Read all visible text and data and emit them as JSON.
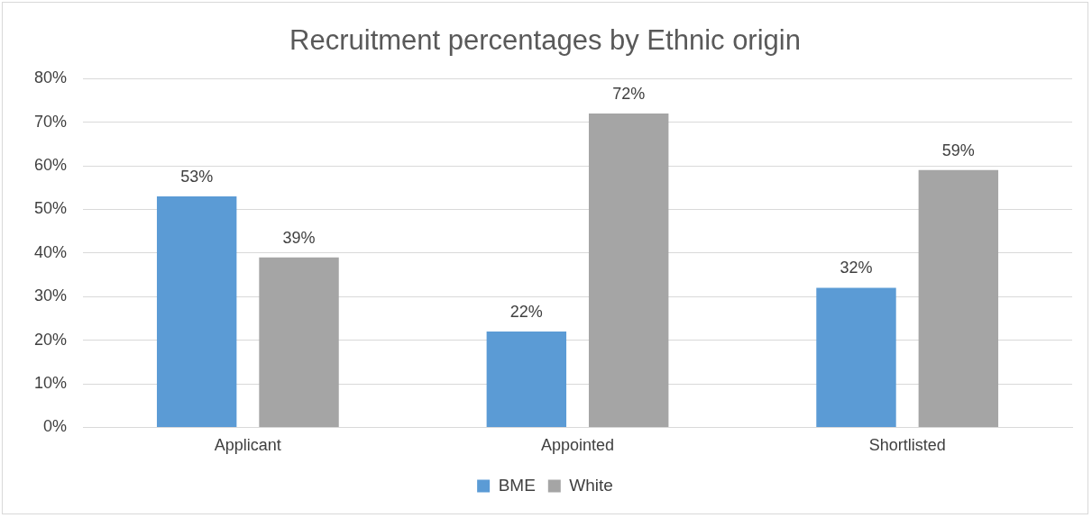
{
  "chart_data": {
    "type": "bar",
    "title": "Recruitment percentages by Ethnic origin",
    "categories": [
      "Applicant",
      "Appointed",
      "Shortlisted"
    ],
    "series": [
      {
        "name": "BME",
        "color": "#5b9bd5",
        "values": [
          53,
          22,
          32
        ],
        "value_labels": [
          "53%",
          "22%",
          "32%"
        ]
      },
      {
        "name": "White",
        "color": "#a5a5a5",
        "values": [
          39,
          72,
          59
        ],
        "value_labels": [
          "39%",
          "72%",
          "59%"
        ]
      }
    ],
    "ylim": [
      0,
      80
    ],
    "yticks": [
      {
        "value": 0,
        "label": "0%"
      },
      {
        "value": 10,
        "label": "10%"
      },
      {
        "value": 20,
        "label": "20%"
      },
      {
        "value": 30,
        "label": "30%"
      },
      {
        "value": 40,
        "label": "40%"
      },
      {
        "value": 50,
        "label": "50%"
      },
      {
        "value": 60,
        "label": "60%"
      },
      {
        "value": 70,
        "label": "70%"
      },
      {
        "value": 80,
        "label": "80%"
      }
    ],
    "grid": "y",
    "legend": "bottom"
  }
}
